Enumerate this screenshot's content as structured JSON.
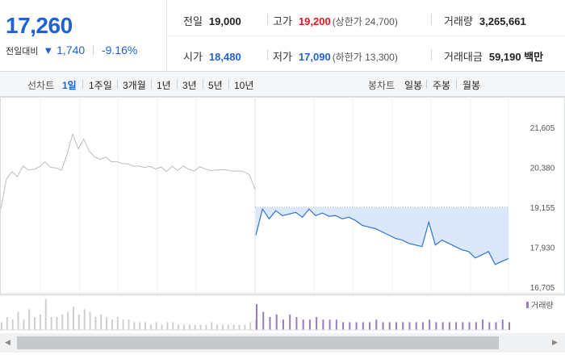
{
  "quote": {
    "price": "17,260",
    "change_label": "전일대비",
    "change_icon": "▼",
    "change": "1,740",
    "change_pct": "-9.16%"
  },
  "stats": {
    "prev_close": {
      "label": "전일",
      "value": "19,000"
    },
    "high": {
      "label": "고가",
      "value": "19,200",
      "sub": "(상한가 24,700)"
    },
    "volume": {
      "label": "거래량",
      "value": "3,265,661"
    },
    "open": {
      "label": "시가",
      "value": "18,480"
    },
    "low": {
      "label": "저가",
      "value": "17,090",
      "sub": "(하한가 13,300)"
    },
    "amount": {
      "label": "거래대금",
      "value": "59,190 백만"
    }
  },
  "period_bar": {
    "line_label": "선차트",
    "line_items": [
      "1일",
      "1주일",
      "3개월",
      "1년",
      "3년",
      "5년",
      "10년"
    ],
    "active": "1일",
    "candle_label": "봉차트",
    "candle_items": [
      "일봉",
      "주봉",
      "월봉"
    ]
  },
  "colors": {
    "price_up": "#e2171f",
    "price_down": "#1e63d5",
    "prev_day_line": "#bdbdbd",
    "today_line": "#2f73d6",
    "fill": "#dbe8fb",
    "volume_today": "#9a7bbf",
    "volume_prev": "#cfcfcf"
  },
  "chart_data": {
    "type": "line",
    "y_ticks": [
      "21,605",
      "20,380",
      "19,155",
      "17,930",
      "16,705"
    ],
    "ylim": [
      16705,
      21605
    ],
    "reference_price": 19155,
    "volume_legend": "거래량",
    "series": [
      {
        "key": "previous_day",
        "values": [
          19100,
          20010,
          20250,
          20100,
          20420,
          20300,
          20320,
          20400,
          20550,
          20380,
          20360,
          20290,
          20800,
          21400,
          20950,
          21250,
          20880,
          20700,
          20620,
          20700,
          20550,
          20560,
          20500,
          20490,
          20420,
          20420,
          20380,
          20410,
          20330,
          20390,
          20250,
          20420,
          20280,
          20420,
          20320,
          20270,
          20400,
          20330,
          20280,
          20300,
          20310,
          20300,
          20260,
          20270,
          20250,
          20150,
          19700
        ]
      },
      {
        "key": "today",
        "values": [
          18300,
          19100,
          18800,
          19050,
          18900,
          18950,
          19000,
          18850,
          19100,
          18900,
          18980,
          18880,
          18900,
          18800,
          18850,
          18750,
          18600,
          18550,
          18500,
          18400,
          18300,
          18200,
          18150,
          18050,
          18000,
          17950,
          18700,
          18000,
          18150,
          18050,
          17950,
          17850,
          17800,
          17600,
          17700,
          17800,
          17400,
          17500,
          17580
        ]
      }
    ],
    "volume": {
      "previous_day": [
        3,
        5,
        4,
        7,
        4,
        8,
        5,
        6,
        12,
        5,
        5,
        6,
        7,
        9,
        6,
        8,
        7,
        5,
        6,
        5,
        4,
        5,
        4,
        4,
        3,
        3,
        3,
        2,
        3,
        2,
        3,
        3,
        2,
        2,
        2,
        2,
        2,
        2,
        3,
        2,
        2,
        2,
        2,
        2,
        2,
        3,
        4
      ],
      "today": [
        10,
        7,
        5,
        6,
        4,
        6,
        5,
        4,
        4,
        5,
        4,
        4,
        4,
        3,
        3,
        3,
        3,
        3,
        4,
        3,
        3,
        3,
        3,
        3,
        3,
        3,
        4,
        3,
        3,
        3,
        3,
        3,
        3,
        3,
        4,
        3,
        3,
        4,
        3
      ]
    }
  }
}
